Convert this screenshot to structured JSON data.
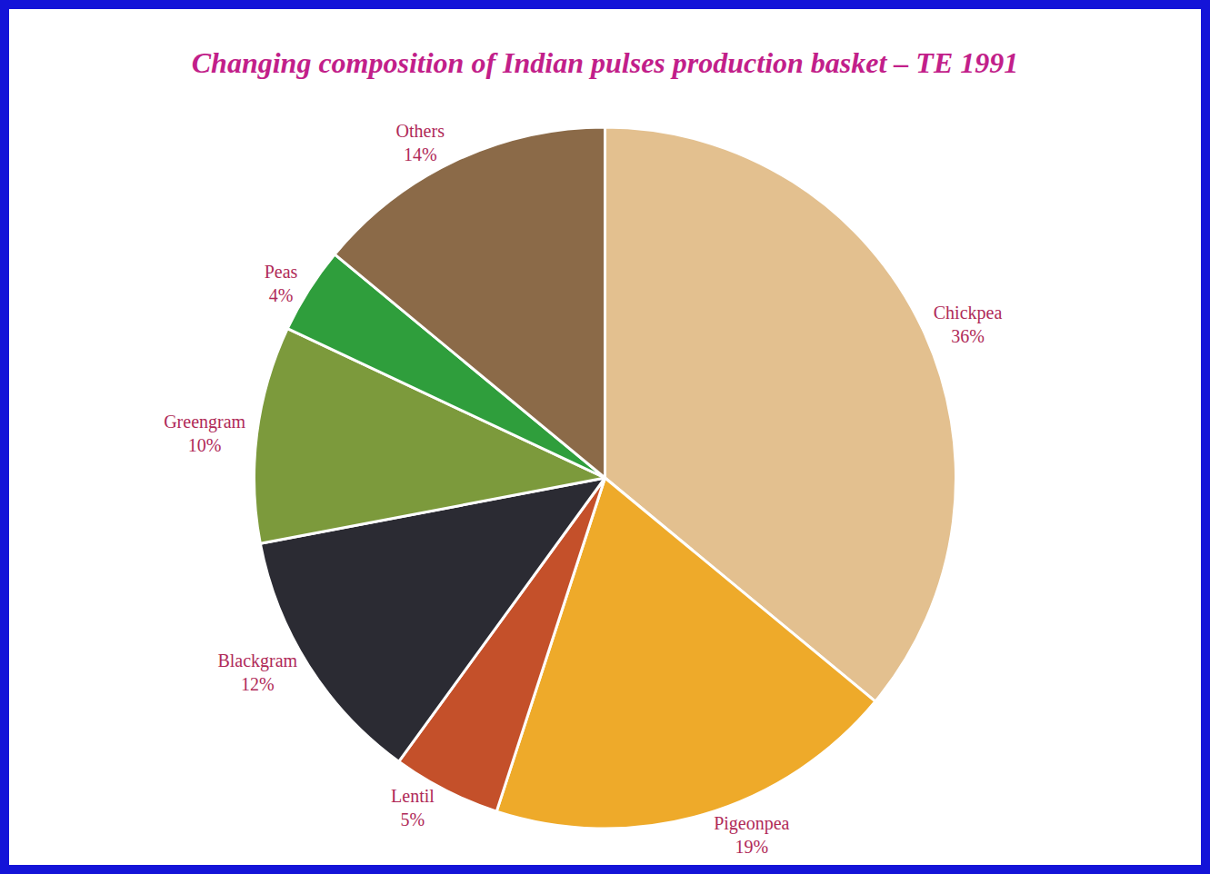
{
  "chart_data": {
    "type": "pie",
    "title": "Changing composition of Indian pulses production basket – TE 1991",
    "categories": [
      "Chickpea",
      "Pigeonpea",
      "Lentil",
      "Blackgram",
      "Greengram",
      "Peas",
      "Others"
    ],
    "values": [
      36,
      19,
      5,
      12,
      10,
      4,
      14
    ],
    "value_labels": [
      "36%",
      "19%",
      "5%",
      "12%",
      "10%",
      "4%",
      "14%"
    ],
    "colors": [
      "#e3c08f",
      "#eeaa2a",
      "#c4502a",
      "#2b2b33",
      "#7c9a3c",
      "#2f9e3c",
      "#8b6a48"
    ],
    "data_labels": true
  }
}
